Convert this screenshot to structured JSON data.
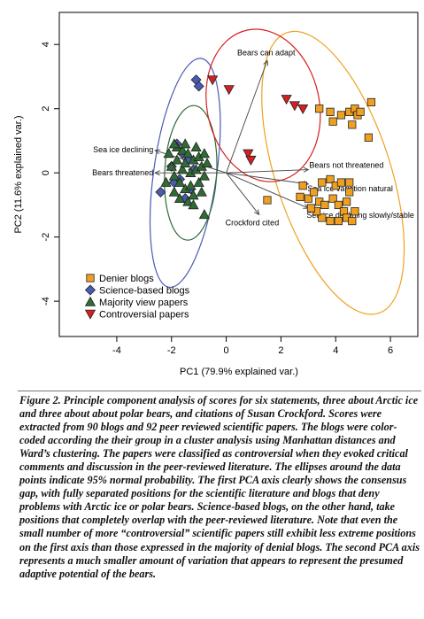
{
  "chart_data": {
    "type": "scatter",
    "xlabel": "PC1 (79.9% explained var.)",
    "ylabel": "PC2 (11.6% explained var.)",
    "xlim": [
      -6.1,
      7.0
    ],
    "ylim": [
      -5.1,
      5.0
    ],
    "xticks": [
      -4,
      -2,
      0,
      2,
      4,
      6
    ],
    "yticks": [
      -4,
      -2,
      0,
      2,
      4
    ],
    "grid": false,
    "legend_position": "bottom-left",
    "series": [
      {
        "name": "Denier blogs",
        "marker": "square",
        "color": "#f0a020",
        "points": [
          [
            3.4,
            2.0
          ],
          [
            3.8,
            1.9
          ],
          [
            3.9,
            1.6
          ],
          [
            4.2,
            1.8
          ],
          [
            4.5,
            1.9
          ],
          [
            4.7,
            2.0
          ],
          [
            4.8,
            1.8
          ],
          [
            4.6,
            1.5
          ],
          [
            5.3,
            2.2
          ],
          [
            5.2,
            1.1
          ],
          [
            4.9,
            1.9
          ],
          [
            1.5,
            -0.85
          ],
          [
            2.8,
            -0.4
          ],
          [
            2.7,
            -0.75
          ],
          [
            3.0,
            -0.8
          ],
          [
            3.2,
            -0.6
          ],
          [
            3.5,
            -0.3
          ],
          [
            3.8,
            -0.2
          ],
          [
            4.0,
            -0.4
          ],
          [
            4.2,
            -0.3
          ],
          [
            4.5,
            -0.3
          ],
          [
            3.4,
            -0.9
          ],
          [
            3.6,
            -1.0
          ],
          [
            3.9,
            -0.8
          ],
          [
            4.1,
            -1.0
          ],
          [
            4.4,
            -0.9
          ],
          [
            4.5,
            -0.6
          ],
          [
            4.3,
            -1.2
          ],
          [
            3.5,
            -1.4
          ],
          [
            3.8,
            -1.5
          ],
          [
            4.1,
            -1.5
          ],
          [
            4.4,
            -1.4
          ],
          [
            4.6,
            -1.5
          ],
          [
            3.3,
            -1.2
          ],
          [
            3.1,
            -1.1
          ],
          [
            4.7,
            -1.2
          ]
        ]
      },
      {
        "name": "Science-based blogs",
        "marker": "diamond",
        "color": "#4a5bb5",
        "points": [
          [
            -1.1,
            2.9
          ],
          [
            -1.0,
            2.7
          ],
          [
            -2.4,
            -0.6
          ],
          [
            -2.0,
            0.2
          ],
          [
            -1.8,
            0.9
          ],
          [
            -1.6,
            0.6
          ],
          [
            -1.4,
            0.4
          ],
          [
            -1.9,
            -0.3
          ],
          [
            -1.5,
            -0.8
          ],
          [
            -1.2,
            0.1
          ],
          [
            -1.7,
            -0.2
          ],
          [
            -1.3,
            -0.5
          ]
        ]
      },
      {
        "name": "Majority view papers",
        "marker": "triangle",
        "color": "#2e6b35",
        "points": [
          [
            -2.1,
            0.6
          ],
          [
            -2.0,
            0.2
          ],
          [
            -1.9,
            -0.1
          ],
          [
            -1.9,
            -0.6
          ],
          [
            -1.8,
            0.8
          ],
          [
            -1.8,
            0.4
          ],
          [
            -1.7,
            -0.3
          ],
          [
            -1.7,
            -0.8
          ],
          [
            -1.6,
            0.1
          ],
          [
            -1.6,
            0.7
          ],
          [
            -1.5,
            -0.5
          ],
          [
            -1.5,
            0.3
          ],
          [
            -1.4,
            -0.9
          ],
          [
            -1.4,
            0.6
          ],
          [
            -1.3,
            0.0
          ],
          [
            -1.3,
            -0.4
          ],
          [
            -1.2,
            0.4
          ],
          [
            -1.2,
            -0.7
          ],
          [
            -1.1,
            0.8
          ],
          [
            -1.1,
            0.1
          ],
          [
            -1.0,
            -0.3
          ],
          [
            -1.0,
            0.5
          ],
          [
            -0.9,
            -0.6
          ],
          [
            -0.9,
            0.2
          ],
          [
            -0.8,
            0.6
          ],
          [
            -0.8,
            -0.1
          ],
          [
            -0.7,
            0.3
          ],
          [
            -1.9,
            0.9
          ],
          [
            -2.2,
            -0.3
          ],
          [
            -0.8,
            -1.3
          ],
          [
            -1.5,
            0.9
          ],
          [
            -1.2,
            -1.0
          ]
        ]
      },
      {
        "name": "Controversial papers",
        "marker": "triangle-down",
        "color": "#d42020",
        "points": [
          [
            -0.5,
            2.9
          ],
          [
            0.1,
            2.6
          ],
          [
            2.2,
            2.3
          ],
          [
            2.5,
            2.1
          ],
          [
            2.8,
            2.0
          ],
          [
            0.8,
            0.6
          ],
          [
            0.9,
            0.4
          ]
        ]
      }
    ],
    "arrows": [
      {
        "label": "Bears can adapt",
        "to": [
          1.5,
          3.5
        ]
      },
      {
        "label": "Sea ice declining",
        "to": [
          -2.6,
          0.7
        ]
      },
      {
        "label": "Bears threatened",
        "to": [
          -2.6,
          0.0
        ]
      },
      {
        "label": "Bears not threatened",
        "to": [
          3.0,
          0.1
        ]
      },
      {
        "label": "Sea ice variation natural",
        "to": [
          3.0,
          -0.35
        ]
      },
      {
        "label": "Sea ice declining slowly/stable",
        "to": [
          3.0,
          -1.1
        ]
      },
      {
        "label": "Crockford cited",
        "to": [
          1.2,
          -1.3
        ]
      }
    ],
    "ellipses": [
      {
        "series": "Denier blogs",
        "color": "#f0a020",
        "center": [
          3.9,
          0.0
        ],
        "rx": 2.1,
        "ry": 4.6,
        "angle": -18
      },
      {
        "series": "Science-based blogs",
        "color": "#4a5bb5",
        "center": [
          -1.5,
          0.0
        ],
        "rx": 1.15,
        "ry": 3.6,
        "angle": 8
      },
      {
        "series": "Majority view papers",
        "color": "#2e6b35",
        "center": [
          -1.3,
          0.0
        ],
        "rx": 0.95,
        "ry": 2.1,
        "angle": 3
      },
      {
        "series": "Controversial papers",
        "color": "#d42020",
        "center": [
          1.35,
          2.1
        ],
        "rx": 2.05,
        "ry": 2.4,
        "angle": -12
      }
    ]
  },
  "caption": "Figure 2. Principle component analysis of scores for six statements, three about Arctic ice and three about about polar bears, and citations of Susan Crockford. Scores were extracted from 90 blogs and 92 peer reviewed scientific papers. The blogs were color-coded according the their group in a cluster analysis using Manhattan distances and Ward’s clustering. The papers were classified as controversial when they evoked critical comments and discussion in the peer-reviewed literature. The ellipses around the data points indicate 95% normal probability. The first PCA axis clearly shows the consensus gap, with fully separated positions for the scientific literature and blogs that deny problems with Arctic ice or polar bears. Science-based blogs, on the other hand, take positions that completely overlap with the peer-reviewed literature. Note that even the small number of more “controversial” scientific papers still exhibit less extreme positions on the first axis than those expressed in the majority of denial blogs. The second PCA axis represents a much smaller amount of variation that appears to represent the presumed adaptive potential of the bears."
}
